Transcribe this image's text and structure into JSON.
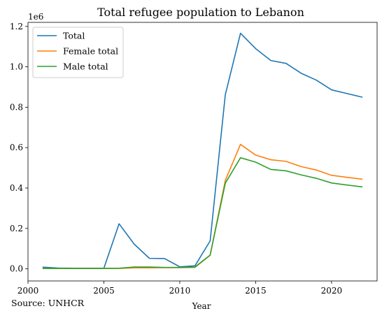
{
  "chart_data": {
    "type": "line",
    "title": "Total refugee population to Lebanon",
    "xlabel": "Year",
    "ylabel": "",
    "y_offset_label": "1e6",
    "source": "Source: UNHCR",
    "xlim": [
      2000,
      2023
    ],
    "ylim": [
      -0.06,
      1.22
    ],
    "x_ticks": [
      2000,
      2005,
      2010,
      2015,
      2020
    ],
    "x_tick_labels": [
      "2000",
      "2005",
      "2010",
      "2015",
      "2020"
    ],
    "y_ticks": [
      0.0,
      0.2,
      0.4,
      0.6,
      0.8,
      1.0,
      1.2
    ],
    "y_tick_labels": [
      "0.0",
      "0.2",
      "0.4",
      "0.6",
      "0.8",
      "1.0",
      "1.2"
    ],
    "grid": false,
    "legend_position": "top-left",
    "x": [
      2001,
      2002,
      2003,
      2004,
      2005,
      2006,
      2007,
      2008,
      2009,
      2010,
      2011,
      2012,
      2013,
      2014,
      2015,
      2016,
      2017,
      2018,
      2019,
      2020,
      2021,
      2022
    ],
    "series": [
      {
        "name": "Total",
        "color": "#1f77b4",
        "values": [
          0.008,
          0.004,
          0.003,
          0.003,
          0.003,
          0.223,
          0.122,
          0.052,
          0.051,
          0.01,
          0.015,
          0.138,
          0.862,
          1.166,
          1.09,
          1.031,
          1.017,
          0.968,
          0.934,
          0.886,
          0.868,
          0.85
        ]
      },
      {
        "name": "Female total",
        "color": "#ff7f0e",
        "values": [
          0.002,
          0.002,
          0.002,
          0.002,
          0.002,
          0.002,
          0.005,
          0.005,
          0.006,
          0.006,
          0.007,
          0.067,
          0.438,
          0.616,
          0.563,
          0.54,
          0.532,
          0.506,
          0.489,
          0.463,
          0.453,
          0.444
        ]
      },
      {
        "name": "Male total",
        "color": "#2ca02c",
        "values": [
          0.002,
          0.002,
          0.002,
          0.002,
          0.002,
          0.003,
          0.009,
          0.009,
          0.007,
          0.007,
          0.009,
          0.068,
          0.424,
          0.55,
          0.528,
          0.492,
          0.485,
          0.465,
          0.448,
          0.425,
          0.415,
          0.406
        ]
      }
    ]
  }
}
